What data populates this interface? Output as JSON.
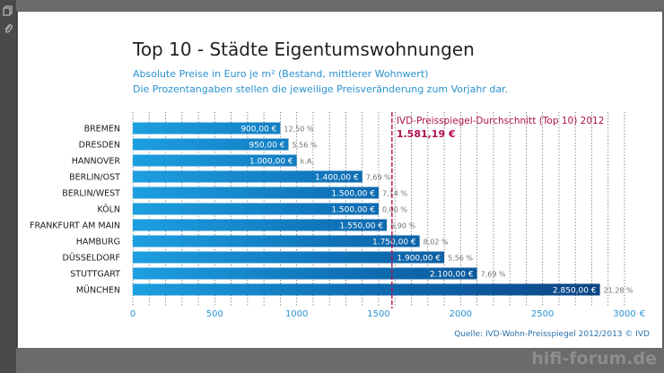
{
  "header": {
    "title": "Top 10 - Städte Eigentumswohnungen",
    "subtitle_line1": "Absolute Preise in Euro je m² (Bestand, mittlerer Wohnwert)",
    "subtitle_line2": "Die Prozentangaben stellen die jeweilige Preisveränderung zum Vorjahr dar."
  },
  "footer": {
    "source": "Quelle: IVD-Wohn-Preisspiegel 2012/2013 © IVD"
  },
  "watermark": "hifi-forum.de",
  "toolbar": {
    "icons": [
      "pages-icon",
      "attachment-icon"
    ]
  },
  "colors": {
    "bar_light": "#1d9fe0",
    "bar_mid": "#0f6fb5",
    "bar_dark": "#0b3f7f",
    "reference_line": "#b01050",
    "axis_text": "#2a93d0"
  },
  "chart_data": {
    "type": "bar",
    "orientation": "horizontal",
    "categories": [
      "BREMEN",
      "DRESDEN",
      "HANNOVER",
      "BERLIN/OST",
      "BERLIN/WEST",
      "KÖLN",
      "FRANKFURT AM MAIN",
      "HAMBURG",
      "DÜSSELDORF",
      "STUTTGART",
      "MÜNCHEN"
    ],
    "values": [
      900,
      950,
      1000,
      1400,
      1500,
      1500,
      1550,
      1750,
      1900,
      2100,
      2850
    ],
    "value_labels": [
      "900,00 €",
      "950,00 €",
      "1.000,00 €",
      "1.400,00 €",
      "1.500,00 €",
      "1.500,00 €",
      "1.550,00 €",
      "1.750,00 €",
      "1.900,00 €",
      "2.100,00 €",
      "2.850,00 €"
    ],
    "changes": [
      "12,50 %",
      "5,56 %",
      "k.A.",
      "7,69 %",
      "7,14 %",
      "0,00 %",
      "6,90 %",
      "8,02 %",
      "5,56 %",
      "7,69 %",
      "21,28 %"
    ],
    "xlim": [
      0,
      3000
    ],
    "xticks": [
      0,
      500,
      1000,
      1500,
      2000,
      2500,
      3000
    ],
    "xtick_labels": [
      "0",
      "500",
      "1000",
      "1500",
      "2000",
      "2500",
      "3000"
    ],
    "xunit": "€",
    "reference": {
      "value": 1581.19,
      "label": "IVD-Preisspiegel-Durchschnitt (Top 10) 2012",
      "value_label": "1.581,19 €"
    }
  }
}
